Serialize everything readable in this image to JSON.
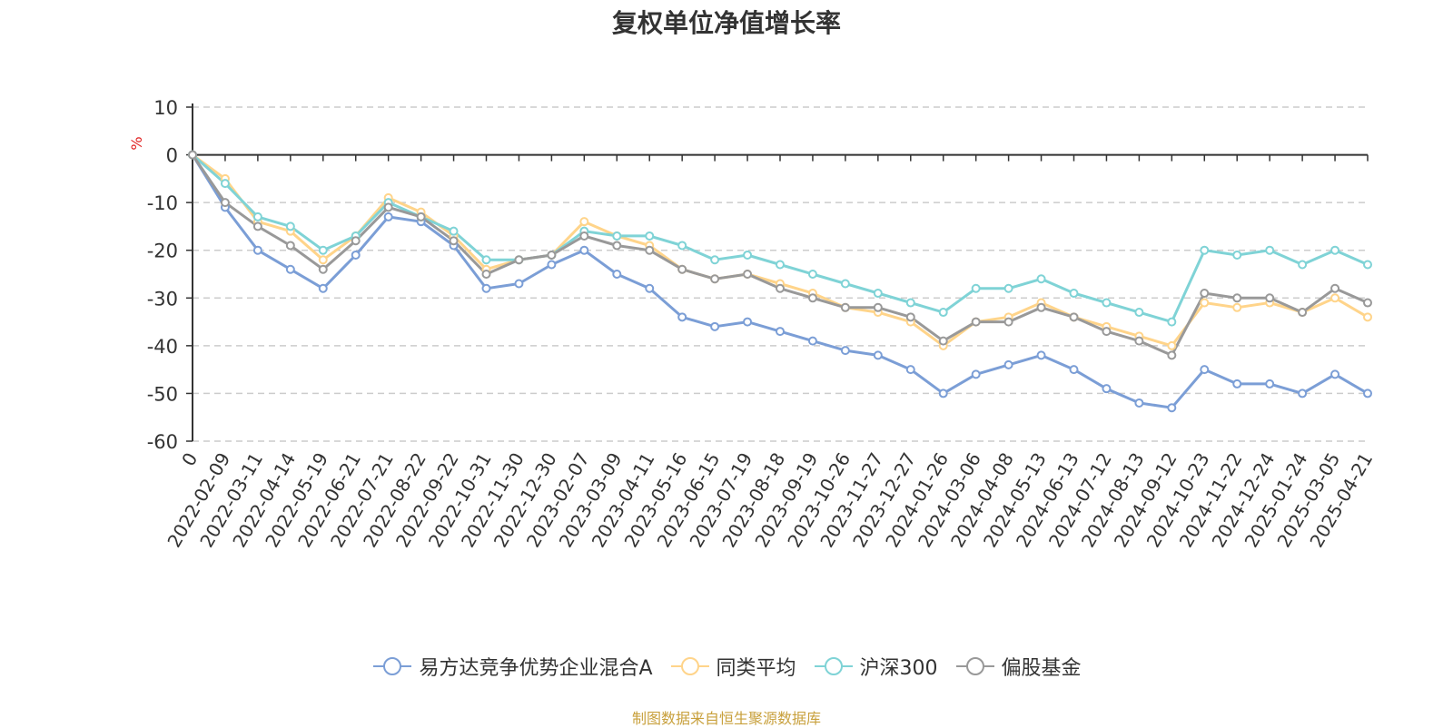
{
  "title": "复权单位净值增长率",
  "source_note": "制图数据来自恒生聚源数据库",
  "chart_data": {
    "type": "line",
    "title": "复权单位净值增长率",
    "ylabel": "%",
    "ylim": [
      -60,
      10
    ],
    "yticks": [
      10,
      0,
      -10,
      -20,
      -30,
      -40,
      -50,
      -60
    ],
    "grid": true,
    "legend_position": "bottom",
    "categories": [
      "0",
      "2022-02-09",
      "2022-03-11",
      "2022-04-14",
      "2022-05-19",
      "2022-06-21",
      "2022-07-21",
      "2022-08-22",
      "2022-09-22",
      "2022-10-31",
      "2022-11-30",
      "2022-12-30",
      "2023-02-07",
      "2023-03-09",
      "2023-04-11",
      "2023-05-16",
      "2023-06-15",
      "2023-07-19",
      "2023-08-18",
      "2023-09-19",
      "2023-10-26",
      "2023-11-27",
      "2023-12-27",
      "2024-01-26",
      "2024-03-06",
      "2024-04-08",
      "2024-05-13",
      "2024-06-13",
      "2024-07-12",
      "2024-08-13",
      "2024-09-12",
      "2024-10-23",
      "2024-11-22",
      "2024-12-24",
      "2025-01-24",
      "2025-03-05",
      "2025-04-21"
    ],
    "series": [
      {
        "name": "易方达竞争优势企业混合A",
        "color": "#7b9ed6",
        "values": [
          0,
          -11,
          -20,
          -24,
          -28,
          -21,
          -13,
          -14,
          -19,
          -28,
          -27,
          -23,
          -20,
          -25,
          -28,
          -34,
          -36,
          -35,
          -37,
          -39,
          -41,
          -42,
          -45,
          -50,
          -46,
          -44,
          -42,
          -45,
          -49,
          -52,
          -53,
          -45,
          -48,
          -48,
          -50,
          -46,
          -50
        ]
      },
      {
        "name": "同类平均",
        "color": "#ffd48a",
        "values": [
          0,
          -5,
          -14,
          -16,
          -22,
          -17,
          -9,
          -12,
          -17,
          -24,
          -22,
          -21,
          -14,
          -17,
          -19,
          -24,
          -26,
          -25,
          -27,
          -29,
          -32,
          -33,
          -35,
          -40,
          -35,
          -34,
          -31,
          -34,
          -36,
          -38,
          -40,
          -31,
          -32,
          -31,
          -33,
          -30,
          -34
        ]
      },
      {
        "name": "沪深300",
        "color": "#7fd3d6",
        "values": [
          0,
          -6,
          -13,
          -15,
          -20,
          -17,
          -10,
          -13,
          -16,
          -22,
          -22,
          -21,
          -16,
          -17,
          -17,
          -19,
          -22,
          -21,
          -23,
          -25,
          -27,
          -29,
          -31,
          -33,
          -28,
          -28,
          -26,
          -29,
          -31,
          -33,
          -35,
          -20,
          -21,
          -20,
          -23,
          -20,
          -23
        ]
      },
      {
        "name": "偏股基金",
        "color": "#999999",
        "values": [
          0,
          -10,
          -15,
          -19,
          -24,
          -18,
          -11,
          -13,
          -18,
          -25,
          -22,
          -21,
          -17,
          -19,
          -20,
          -24,
          -26,
          -25,
          -28,
          -30,
          -32,
          -32,
          -34,
          -39,
          -35,
          -35,
          -32,
          -34,
          -37,
          -39,
          -42,
          -29,
          -30,
          -30,
          -33,
          -28,
          -31
        ]
      }
    ]
  }
}
